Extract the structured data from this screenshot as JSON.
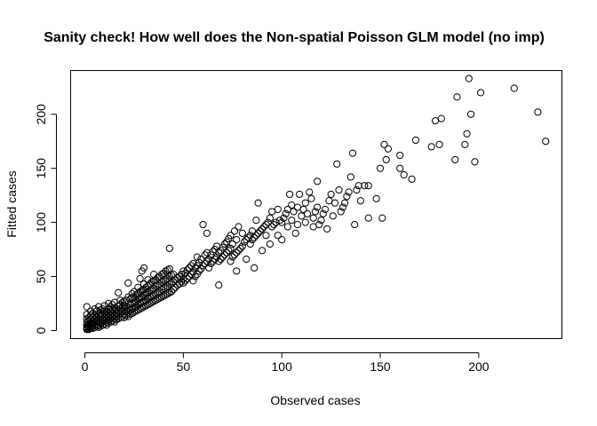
{
  "chart_data": {
    "type": "scatter",
    "title": "Sanity check! How well does the Non-spatial Poisson GLM model (no imp)",
    "xlabel": "Observed cases",
    "ylabel": "Fitted cases",
    "xlim": [
      -7,
      242
    ],
    "ylim": [
      -7,
      240
    ],
    "xticks": [
      0,
      50,
      100,
      150,
      200
    ],
    "yticks": [
      0,
      50,
      100,
      150,
      200
    ],
    "grid": false,
    "legend": "none",
    "point_color": "#000000",
    "points": [
      [
        1,
        1
      ],
      [
        1,
        2
      ],
      [
        1,
        3
      ],
      [
        1,
        5
      ],
      [
        1,
        8
      ],
      [
        1,
        11
      ],
      [
        1,
        15
      ],
      [
        1,
        22
      ],
      [
        2,
        1
      ],
      [
        2,
        3
      ],
      [
        2,
        4
      ],
      [
        2,
        6
      ],
      [
        2,
        9
      ],
      [
        2,
        12
      ],
      [
        3,
        2
      ],
      [
        3,
        4
      ],
      [
        3,
        6
      ],
      [
        3,
        7
      ],
      [
        3,
        10
      ],
      [
        3,
        14
      ],
      [
        3,
        18
      ],
      [
        4,
        2
      ],
      [
        4,
        5
      ],
      [
        4,
        7
      ],
      [
        4,
        9
      ],
      [
        4,
        12
      ],
      [
        4,
        16
      ],
      [
        5,
        3
      ],
      [
        5,
        5
      ],
      [
        5,
        8
      ],
      [
        5,
        11
      ],
      [
        5,
        14
      ],
      [
        5,
        20
      ],
      [
        6,
        4
      ],
      [
        6,
        6
      ],
      [
        6,
        9
      ],
      [
        6,
        12
      ],
      [
        6,
        15
      ],
      [
        6,
        18
      ],
      [
        7,
        3
      ],
      [
        7,
        5
      ],
      [
        7,
        8
      ],
      [
        7,
        11
      ],
      [
        7,
        14
      ],
      [
        7,
        22
      ],
      [
        8,
        4
      ],
      [
        8,
        7
      ],
      [
        8,
        10
      ],
      [
        8,
        13
      ],
      [
        8,
        16
      ],
      [
        8,
        19
      ],
      [
        9,
        5
      ],
      [
        9,
        8
      ],
      [
        9,
        11
      ],
      [
        9,
        15
      ],
      [
        9,
        20
      ],
      [
        10,
        6
      ],
      [
        10,
        9
      ],
      [
        10,
        12
      ],
      [
        10,
        16
      ],
      [
        10,
        18
      ],
      [
        10,
        23
      ],
      [
        11,
        5
      ],
      [
        11,
        8
      ],
      [
        11,
        11
      ],
      [
        11,
        14
      ],
      [
        11,
        17
      ],
      [
        12,
        7
      ],
      [
        12,
        10
      ],
      [
        12,
        13
      ],
      [
        12,
        16
      ],
      [
        12,
        20
      ],
      [
        12,
        25
      ],
      [
        13,
        8
      ],
      [
        13,
        11
      ],
      [
        13,
        15
      ],
      [
        13,
        18
      ],
      [
        13,
        22
      ],
      [
        14,
        9
      ],
      [
        14,
        12
      ],
      [
        14,
        16
      ],
      [
        14,
        19
      ],
      [
        14,
        24
      ],
      [
        15,
        8
      ],
      [
        15,
        11
      ],
      [
        15,
        14
      ],
      [
        15,
        18
      ],
      [
        15,
        21
      ],
      [
        15,
        26
      ],
      [
        16,
        10
      ],
      [
        16,
        13
      ],
      [
        16,
        17
      ],
      [
        16,
        20
      ],
      [
        17,
        11
      ],
      [
        17,
        15
      ],
      [
        17,
        19
      ],
      [
        17,
        23
      ],
      [
        17,
        35
      ],
      [
        18,
        12
      ],
      [
        18,
        16
      ],
      [
        18,
        20
      ],
      [
        18,
        24
      ],
      [
        18,
        28
      ],
      [
        19,
        13
      ],
      [
        19,
        17
      ],
      [
        19,
        21
      ],
      [
        19,
        26
      ],
      [
        20,
        12
      ],
      [
        20,
        15
      ],
      [
        20,
        19
      ],
      [
        20,
        23
      ],
      [
        20,
        27
      ],
      [
        21,
        14
      ],
      [
        21,
        18
      ],
      [
        21,
        22
      ],
      [
        21,
        28
      ],
      [
        22,
        13
      ],
      [
        22,
        17
      ],
      [
        22,
        21
      ],
      [
        22,
        25
      ],
      [
        22,
        31
      ],
      [
        22,
        44
      ],
      [
        23,
        15
      ],
      [
        23,
        19
      ],
      [
        23,
        24
      ],
      [
        23,
        29
      ],
      [
        24,
        16
      ],
      [
        24,
        20
      ],
      [
        24,
        25
      ],
      [
        24,
        30
      ],
      [
        24,
        34
      ],
      [
        25,
        17
      ],
      [
        25,
        21
      ],
      [
        25,
        26
      ],
      [
        25,
        31
      ],
      [
        25,
        36
      ],
      [
        26,
        18
      ],
      [
        26,
        22
      ],
      [
        26,
        27
      ],
      [
        26,
        33
      ],
      [
        27,
        19
      ],
      [
        27,
        24
      ],
      [
        27,
        29
      ],
      [
        27,
        34
      ],
      [
        27,
        40
      ],
      [
        28,
        20
      ],
      [
        28,
        25
      ],
      [
        28,
        30
      ],
      [
        28,
        36
      ],
      [
        28,
        48
      ],
      [
        29,
        21
      ],
      [
        29,
        26
      ],
      [
        29,
        31
      ],
      [
        29,
        37
      ],
      [
        29,
        55
      ],
      [
        30,
        22
      ],
      [
        30,
        27
      ],
      [
        30,
        33
      ],
      [
        30,
        38
      ],
      [
        30,
        43
      ],
      [
        30,
        58
      ],
      [
        31,
        23
      ],
      [
        31,
        28
      ],
      [
        31,
        34
      ],
      [
        31,
        40
      ],
      [
        32,
        24
      ],
      [
        32,
        30
      ],
      [
        32,
        35
      ],
      [
        32,
        41
      ],
      [
        32,
        47
      ],
      [
        33,
        25
      ],
      [
        33,
        31
      ],
      [
        33,
        37
      ],
      [
        33,
        43
      ],
      [
        34,
        26
      ],
      [
        34,
        32
      ],
      [
        34,
        38
      ],
      [
        34,
        45
      ],
      [
        35,
        27
      ],
      [
        35,
        33
      ],
      [
        35,
        39
      ],
      [
        35,
        46
      ],
      [
        35,
        52
      ],
      [
        36,
        28
      ],
      [
        36,
        34
      ],
      [
        36,
        41
      ],
      [
        36,
        47
      ],
      [
        37,
        29
      ],
      [
        37,
        35
      ],
      [
        37,
        42
      ],
      [
        37,
        49
      ],
      [
        38,
        30
      ],
      [
        38,
        36
      ],
      [
        38,
        43
      ],
      [
        38,
        50
      ],
      [
        39,
        31
      ],
      [
        39,
        38
      ],
      [
        39,
        45
      ],
      [
        39,
        52
      ],
      [
        40,
        32
      ],
      [
        40,
        39
      ],
      [
        40,
        46
      ],
      [
        40,
        53
      ],
      [
        41,
        33
      ],
      [
        41,
        40
      ],
      [
        41,
        47
      ],
      [
        41,
        55
      ],
      [
        42,
        34
      ],
      [
        42,
        41
      ],
      [
        42,
        48
      ],
      [
        42,
        56
      ],
      [
        43,
        35
      ],
      [
        43,
        43
      ],
      [
        43,
        50
      ],
      [
        43,
        57
      ],
      [
        43,
        76
      ],
      [
        44,
        36
      ],
      [
        44,
        44
      ],
      [
        44,
        51
      ],
      [
        45,
        38
      ],
      [
        45,
        45
      ],
      [
        45,
        52
      ],
      [
        46,
        40
      ],
      [
        46,
        47
      ],
      [
        47,
        42
      ],
      [
        47,
        49
      ],
      [
        48,
        43
      ],
      [
        48,
        50
      ],
      [
        49,
        45
      ],
      [
        49,
        52
      ],
      [
        50,
        44
      ],
      [
        50,
        48
      ],
      [
        50,
        55
      ],
      [
        51,
        46
      ],
      [
        51,
        53
      ],
      [
        52,
        48
      ],
      [
        52,
        56
      ],
      [
        53,
        50
      ],
      [
        53,
        58
      ],
      [
        54,
        52
      ],
      [
        54,
        60
      ],
      [
        55,
        46
      ],
      [
        55,
        54
      ],
      [
        55,
        62
      ],
      [
        56,
        50
      ],
      [
        56,
        58
      ],
      [
        57,
        52
      ],
      [
        57,
        60
      ],
      [
        57,
        68
      ],
      [
        58,
        55
      ],
      [
        58,
        63
      ],
      [
        59,
        57
      ],
      [
        59,
        66
      ],
      [
        60,
        60
      ],
      [
        60,
        98
      ],
      [
        61,
        62
      ],
      [
        61,
        70
      ],
      [
        62,
        64
      ],
      [
        62,
        72
      ],
      [
        62,
        90
      ],
      [
        63,
        58
      ],
      [
        63,
        66
      ],
      [
        64,
        62
      ],
      [
        64,
        70
      ],
      [
        65,
        64
      ],
      [
        65,
        73
      ],
      [
        66,
        66
      ],
      [
        66,
        75
      ],
      [
        67,
        68
      ],
      [
        67,
        78
      ],
      [
        68,
        42
      ],
      [
        68,
        64
      ],
      [
        68,
        72
      ],
      [
        69,
        66
      ],
      [
        69,
        74
      ],
      [
        70,
        68
      ],
      [
        70,
        77
      ],
      [
        71,
        70
      ],
      [
        71,
        80
      ],
      [
        72,
        72
      ],
      [
        72,
        82
      ],
      [
        73,
        74
      ],
      [
        73,
        85
      ],
      [
        74,
        64
      ],
      [
        74,
        76
      ],
      [
        74,
        88
      ],
      [
        75,
        68
      ],
      [
        75,
        80
      ],
      [
        76,
        70
      ],
      [
        76,
        92
      ],
      [
        77,
        55
      ],
      [
        77,
        72
      ],
      [
        77,
        84
      ],
      [
        78,
        74
      ],
      [
        78,
        96
      ],
      [
        79,
        76
      ],
      [
        80,
        78
      ],
      [
        80,
        90
      ],
      [
        81,
        82
      ],
      [
        82,
        66
      ],
      [
        82,
        84
      ],
      [
        83,
        86
      ],
      [
        84,
        80
      ],
      [
        84,
        88
      ],
      [
        85,
        84
      ],
      [
        85,
        92
      ],
      [
        86,
        58
      ],
      [
        86,
        86
      ],
      [
        87,
        88
      ],
      [
        87,
        102
      ],
      [
        88,
        90
      ],
      [
        88,
        118
      ],
      [
        89,
        92
      ],
      [
        90,
        74
      ],
      [
        90,
        94
      ],
      [
        91,
        96
      ],
      [
        92,
        88
      ],
      [
        92,
        98
      ],
      [
        93,
        100
      ],
      [
        94,
        80
      ],
      [
        94,
        104
      ],
      [
        95,
        96
      ],
      [
        95,
        110
      ],
      [
        96,
        98
      ],
      [
        97,
        100
      ],
      [
        98,
        88
      ],
      [
        98,
        112
      ],
      [
        99,
        102
      ],
      [
        100,
        84
      ],
      [
        100,
        100
      ],
      [
        101,
        104
      ],
      [
        102,
        108
      ],
      [
        103,
        96
      ],
      [
        103,
        112
      ],
      [
        104,
        126
      ],
      [
        105,
        102
      ],
      [
        105,
        116
      ],
      [
        106,
        110
      ],
      [
        107,
        90
      ],
      [
        108,
        98
      ],
      [
        108,
        114
      ],
      [
        109,
        126
      ],
      [
        110,
        106
      ],
      [
        111,
        112
      ],
      [
        112,
        100
      ],
      [
        112,
        118
      ],
      [
        113,
        108
      ],
      [
        114,
        128
      ],
      [
        115,
        122
      ],
      [
        116,
        96
      ],
      [
        116,
        104
      ],
      [
        117,
        110
      ],
      [
        118,
        114
      ],
      [
        118,
        138
      ],
      [
        119,
        98
      ],
      [
        120,
        102
      ],
      [
        121,
        108
      ],
      [
        122,
        112
      ],
      [
        123,
        94
      ],
      [
        124,
        120
      ],
      [
        125,
        126
      ],
      [
        126,
        106
      ],
      [
        127,
        118
      ],
      [
        128,
        154
      ],
      [
        129,
        130
      ],
      [
        130,
        110
      ],
      [
        131,
        114
      ],
      [
        132,
        118
      ],
      [
        133,
        124
      ],
      [
        134,
        128
      ],
      [
        135,
        142
      ],
      [
        136,
        164
      ],
      [
        137,
        98
      ],
      [
        138,
        130
      ],
      [
        139,
        134
      ],
      [
        140,
        120
      ],
      [
        142,
        134
      ],
      [
        144,
        104
      ],
      [
        144,
        134
      ],
      [
        148,
        122
      ],
      [
        150,
        150
      ],
      [
        151,
        104
      ],
      [
        152,
        172
      ],
      [
        153,
        158
      ],
      [
        154,
        168
      ],
      [
        160,
        150
      ],
      [
        160,
        162
      ],
      [
        162,
        144
      ],
      [
        166,
        140
      ],
      [
        168,
        176
      ],
      [
        176,
        170
      ],
      [
        178,
        194
      ],
      [
        180,
        172
      ],
      [
        181,
        196
      ],
      [
        188,
        158
      ],
      [
        189,
        216
      ],
      [
        193,
        172
      ],
      [
        194,
        182
      ],
      [
        195,
        233
      ],
      [
        196,
        200
      ],
      [
        198,
        156
      ],
      [
        201,
        220
      ],
      [
        218,
        224
      ],
      [
        230,
        202
      ],
      [
        234,
        175
      ]
    ]
  }
}
